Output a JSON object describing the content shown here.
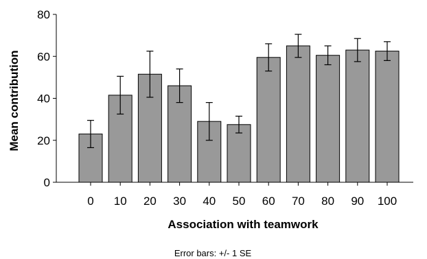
{
  "chart_data": {
    "type": "bar",
    "categories": [
      "0",
      "10",
      "20",
      "30",
      "40",
      "50",
      "60",
      "70",
      "80",
      "90",
      "100"
    ],
    "values": [
      23,
      41.5,
      51.5,
      46,
      29,
      27.5,
      59.5,
      65,
      60.5,
      63,
      62.5
    ],
    "error_low": [
      16.5,
      32.5,
      40.5,
      38,
      20,
      23.5,
      53,
      59.5,
      56,
      57.5,
      58
    ],
    "error_high": [
      29.5,
      50.5,
      62.5,
      54,
      38,
      31.5,
      66,
      70.5,
      65,
      68.5,
      67
    ],
    "xlabel": "Association with teamwork",
    "ylabel": "Mean contribution",
    "ylim": [
      0,
      80
    ],
    "yticks": [
      "0",
      "20",
      "40",
      "60",
      "80"
    ],
    "footnote": "Error bars: +/- 1 SE",
    "bar_color": "#999999",
    "bar_edge_color": "#000000"
  }
}
